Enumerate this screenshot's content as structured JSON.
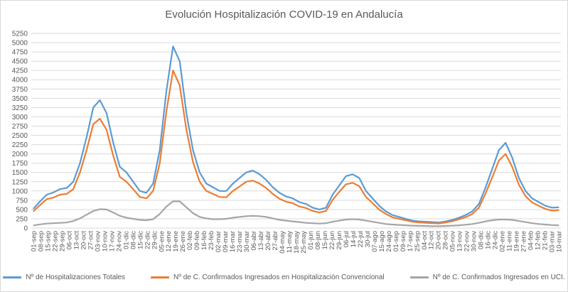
{
  "chart_data": {
    "type": "line",
    "title": "Evolución Hospitalización COVID-19 en Andalucía",
    "xlabel": "",
    "ylabel": "",
    "ylim": [
      0,
      5250
    ],
    "yticks": [
      0,
      250,
      500,
      750,
      1000,
      1250,
      1500,
      1750,
      2000,
      2250,
      2500,
      2750,
      3000,
      3250,
      3500,
      3750,
      4000,
      4250,
      4500,
      4750,
      5000,
      5250
    ],
    "grid": true,
    "legend_position": "bottom",
    "x": [
      "01-sep",
      "08-sep",
      "15-sep",
      "22-sep",
      "29-sep",
      "06-oct",
      "13-oct",
      "20-oct",
      "27-oct",
      "03-nov",
      "10-nov",
      "17-nov",
      "24-nov",
      "01-dic",
      "08-dic",
      "15-dic",
      "22-dic",
      "29-dic",
      "05-ene",
      "12-ene",
      "19-ene",
      "26-ene",
      "02-feb",
      "09-feb",
      "16-feb",
      "23-feb",
      "02-mar",
      "09-mar",
      "16-mar",
      "23-mar",
      "30-mar",
      "06-abr",
      "13-abr",
      "20-abr",
      "27-abr",
      "04-may",
      "11-may",
      "18-may",
      "25-may",
      "01-jun",
      "08-jun",
      "15-jun",
      "22-jun",
      "29-jun",
      "06-jul",
      "13-jul",
      "20-jul",
      "27-jul",
      "03-ago",
      "10-ago",
      "17-ago",
      "24-ago",
      "31-ago",
      "07-sep",
      "14-sep",
      "21-sep",
      "28-sep",
      "05-oct",
      "12-oct",
      "19-oct",
      "26-oct",
      "02-nov",
      "09-nov",
      "16-nov",
      "23-nov",
      "30-nov",
      "07-dic",
      "14-dic",
      "21-dic",
      "28-dic",
      "04-ene",
      "11-ene",
      "18-ene",
      "25-ene",
      "01-feb",
      "08-feb",
      "15-feb",
      "22-feb",
      "01-mar",
      "08-mar"
    ],
    "x_tick_labels": [
      "01-sep",
      "08-sep",
      "15-sep",
      "22-sep",
      "29-sep",
      "06-oct",
      "13-oct",
      "20-oct",
      "27-oct",
      "03-nov",
      "10-nov",
      "17-nov",
      "24-nov",
      "01-dic",
      "08-dic",
      "15-dic",
      "22-dic",
      "29-dic",
      "05-ene",
      "12-ene",
      "19-ene",
      "26-ene",
      "02-feb",
      "09-feb",
      "16-feb",
      "23-feb",
      "02-mar",
      "09-mar",
      "16-mar",
      "23-mar",
      "30-mar",
      "06-abr",
      "13-abr",
      "20-abr",
      "27-abr",
      "04-may",
      "11-may",
      "18-may",
      "25-may",
      "01-jun",
      "08-jun",
      "15-jun",
      "22-jun",
      "29-jun",
      "06-jul",
      "14-jul",
      "22-jul",
      "30-jul",
      "07-ago",
      "15-ago",
      "24-ago",
      "01-sep",
      "09-sep",
      "17-sep",
      "25-sep",
      "04-oct",
      "12-oct",
      "20-oct",
      "28-oct",
      "05-nov",
      "13-nov",
      "22-nov",
      "30-nov",
      "08-dic",
      "16-dic",
      "24-dic",
      "02-ene",
      "11-ene",
      "19-ene",
      "27-ene",
      "04-feb",
      "12-feb",
      "21-feb",
      "03-mar",
      "10-mar"
    ],
    "series": [
      {
        "name": "Nº de Hospitalizaciones Totales",
        "color": "#5b9bd5",
        "values": [
          520,
          720,
          900,
          960,
          1050,
          1080,
          1250,
          1750,
          2450,
          3250,
          3450,
          3100,
          2300,
          1650,
          1500,
          1250,
          1000,
          950,
          1200,
          2100,
          3700,
          4900,
          4500,
          3100,
          2100,
          1500,
          1200,
          1100,
          1000,
          1000,
          1200,
          1350,
          1500,
          1550,
          1450,
          1300,
          1100,
          950,
          850,
          800,
          700,
          650,
          550,
          500,
          550,
          900,
          1150,
          1400,
          1450,
          1350,
          1000,
          800,
          600,
          450,
          350,
          300,
          250,
          200,
          180,
          170,
          160,
          150,
          180,
          220,
          280,
          350,
          450,
          650,
          1100,
          1600,
          2100,
          2300,
          1900,
          1350,
          1000,
          800,
          700,
          600,
          550,
          560
        ]
      },
      {
        "name": "Nº de C. Confirmados Ingresados en Hospitalización Convencional",
        "color": "#ed7d31",
        "values": [
          450,
          620,
          780,
          820,
          900,
          920,
          1050,
          1500,
          2100,
          2800,
          2950,
          2650,
          1950,
          1380,
          1250,
          1050,
          840,
          800,
          1000,
          1750,
          3150,
          4250,
          3850,
          2650,
          1780,
          1250,
          1000,
          920,
          840,
          830,
          1000,
          1120,
          1250,
          1280,
          1200,
          1080,
          920,
          790,
          710,
          670,
          580,
          540,
          460,
          420,
          460,
          760,
          980,
          1180,
          1220,
          1130,
          840,
          670,
          500,
          380,
          290,
          250,
          210,
          170,
          150,
          140,
          130,
          125,
          150,
          185,
          235,
          295,
          380,
          550,
          940,
          1370,
          1820,
          2000,
          1650,
          1170,
          860,
          690,
          600,
          515,
          470,
          480
        ]
      },
      {
        "name": "Nº de C. Confirmados Ingresados en UCI.",
        "color": "#a5a5a5",
        "values": [
          70,
          100,
          120,
          130,
          140,
          150,
          190,
          260,
          360,
          460,
          510,
          500,
          420,
          330,
          280,
          250,
          220,
          210,
          240,
          380,
          580,
          720,
          720,
          560,
          400,
          300,
          260,
          240,
          240,
          250,
          280,
          300,
          320,
          330,
          320,
          300,
          260,
          220,
          200,
          180,
          160,
          140,
          130,
          120,
          130,
          170,
          200,
          230,
          240,
          230,
          200,
          170,
          140,
          110,
          95,
          85,
          75,
          65,
          60,
          55,
          50,
          50,
          55,
          65,
          75,
          90,
          110,
          140,
          180,
          210,
          230,
          230,
          220,
          190,
          160,
          130,
          110,
          95,
          80,
          75
        ]
      }
    ]
  }
}
